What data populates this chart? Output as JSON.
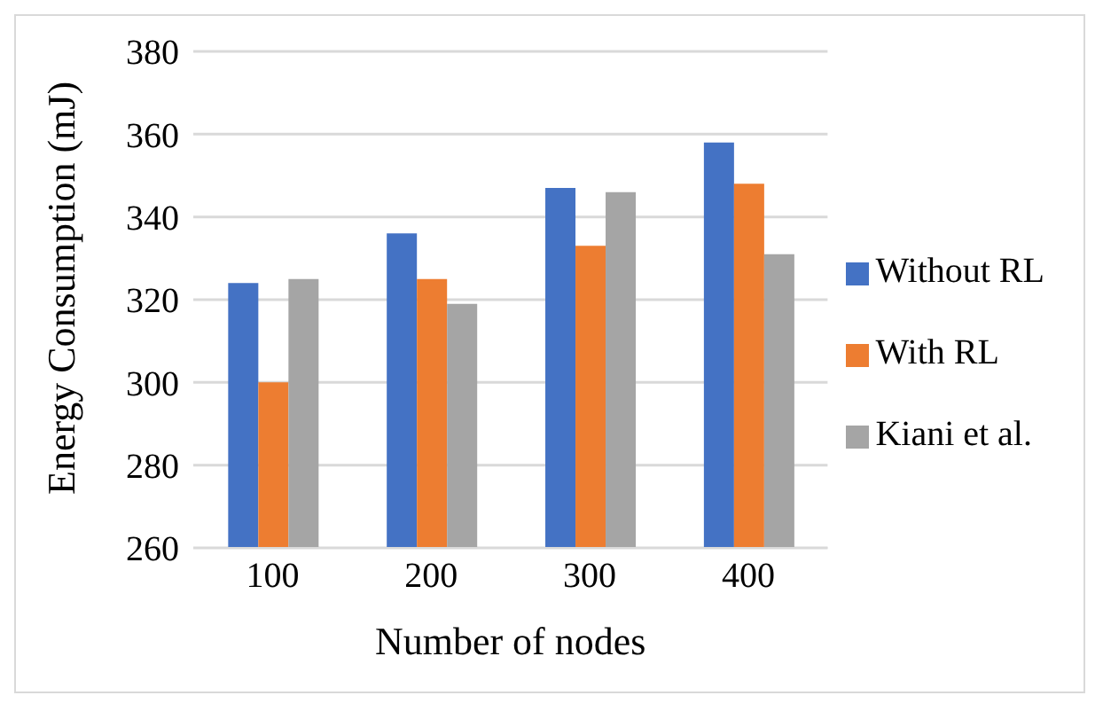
{
  "chart_data": {
    "type": "bar",
    "xlabel": "Number of nodes",
    "ylabel": "Energy Consumption (mJ)",
    "categories": [
      "100",
      "200",
      "300",
      "400"
    ],
    "series": [
      {
        "name": "Without RL",
        "color": "#4472c4",
        "values": [
          324,
          336,
          347,
          358
        ]
      },
      {
        "name": "With RL",
        "color": "#ed7d31",
        "values": [
          300,
          325,
          333,
          348
        ]
      },
      {
        "name": "Kiani et al.",
        "color": "#a5a5a5",
        "values": [
          325,
          319,
          346,
          331
        ]
      }
    ],
    "ylim": [
      260,
      380
    ],
    "yticks": [
      260,
      280,
      300,
      320,
      340,
      360,
      380
    ],
    "grid": "y",
    "legend": "right"
  }
}
